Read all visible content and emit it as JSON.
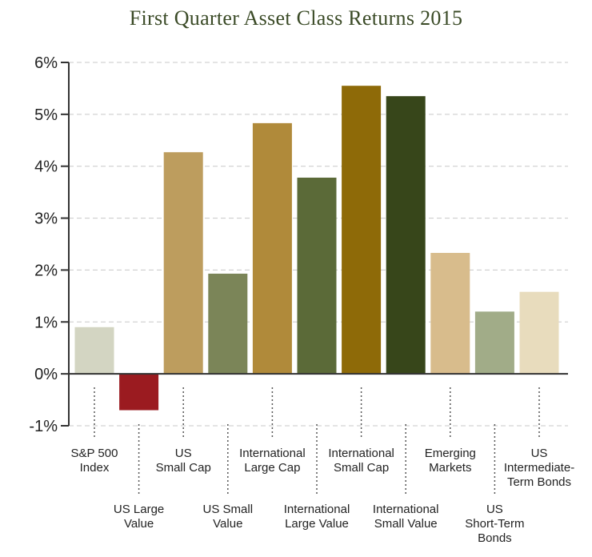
{
  "chart_data": {
    "type": "bar",
    "title": "First Quarter Asset Class Returns 2015",
    "xlabel": "",
    "ylabel": "",
    "ylim": [
      -1,
      6
    ],
    "yticks": [
      "6%",
      "5%",
      "4%",
      "3%",
      "2%",
      "1%",
      "0%",
      "-1%"
    ],
    "grid": true,
    "categories": [
      "S&P 500 Index",
      "US Large Value",
      "US Small Cap",
      "US Small Value",
      "International Large Cap",
      "International Large Value",
      "International Small Cap",
      "International Small Value",
      "Emerging Markets",
      "US Short-Term Bonds",
      "US Intermediate-Term Bonds"
    ],
    "category_lines": [
      [
        "S&P 500",
        "Index"
      ],
      [
        "US Large",
        "Value"
      ],
      [
        "US",
        "Small Cap"
      ],
      [
        "US Small",
        "Value"
      ],
      [
        "International",
        "Large Cap"
      ],
      [
        "International",
        "Large Value"
      ],
      [
        "International",
        "Small Cap"
      ],
      [
        "International",
        "Small Value"
      ],
      [
        "Emerging",
        "Markets"
      ],
      [
        "US",
        "Short-Term",
        "Bonds"
      ],
      [
        "US",
        "Intermediate-",
        "Term Bonds"
      ]
    ],
    "values": [
      0.9,
      -0.7,
      4.27,
      1.93,
      4.83,
      3.78,
      5.55,
      5.35,
      2.33,
      1.2,
      1.58
    ],
    "colors": [
      "#d3d5c2",
      "#9b1b20",
      "#bd9d5e",
      "#7b8558",
      "#b08a3a",
      "#5b6a38",
      "#8e6a08",
      "#37461a",
      "#d8bc8c",
      "#a1ac88",
      "#e8dcbd"
    ]
  }
}
